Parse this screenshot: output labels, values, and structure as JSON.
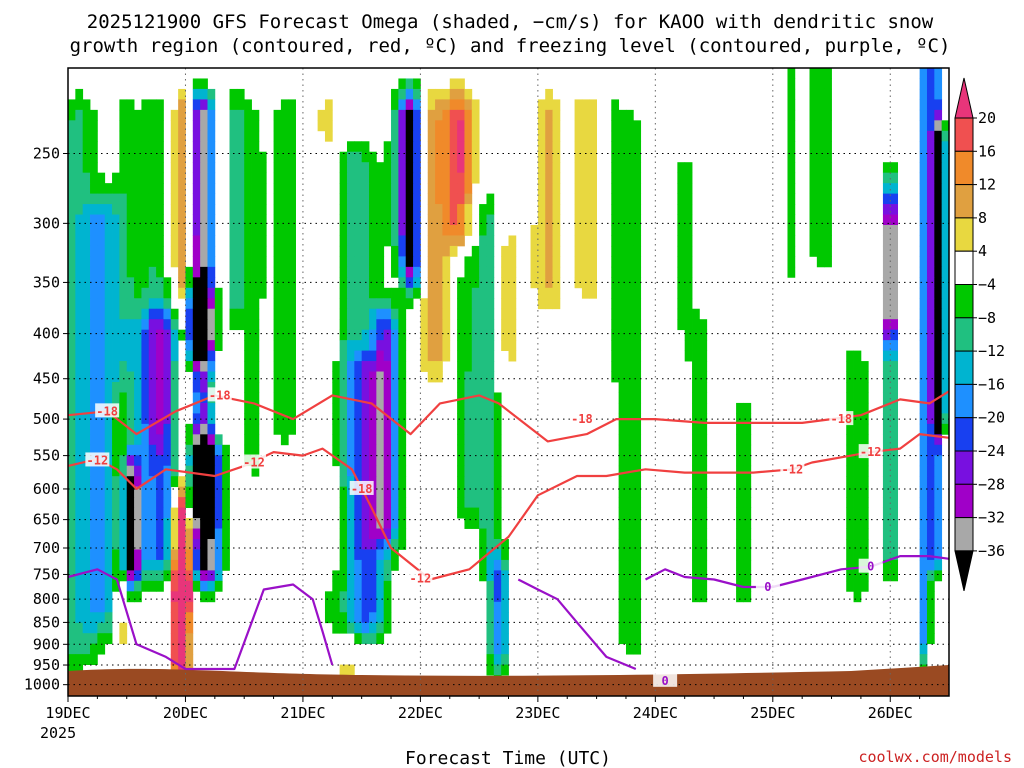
{
  "chart_data": {
    "type": "heatmap",
    "title_line1": "2025121900 GFS Forecast Omega (shaded, −cm/s) for KAOO with dendritic snow",
    "title_line2": "growth region (contoured, red, ºC) and freezing level (contoured, purple, ºC)",
    "xlabel": "Forecast Time (UTC)",
    "ylabel": "",
    "x_ticks": [
      "19DEC",
      "20DEC",
      "21DEC",
      "22DEC",
      "23DEC",
      "24DEC",
      "25DEC",
      "26DEC"
    ],
    "x_year": "2025",
    "x_range_hours": [
      0,
      180
    ],
    "y_ticks": [
      "250",
      "300",
      "350",
      "400",
      "450",
      "500",
      "550",
      "600",
      "650",
      "700",
      "750",
      "800",
      "850",
      "900",
      "950",
      "1000"
    ],
    "y_values": [
      250,
      300,
      350,
      400,
      450,
      500,
      550,
      600,
      650,
      700,
      750,
      800,
      850,
      900,
      950,
      1000
    ],
    "y_range_hpa": [
      200,
      1030
    ],
    "y_scale": "log-pressure",
    "colorbar": {
      "labels": [
        "20",
        "16",
        "12",
        "8",
        "4",
        "−4",
        "−8",
        "−12",
        "−16",
        "−20",
        "−24",
        "−28",
        "−32",
        "−36"
      ],
      "bins": [
        {
          "lo": 20,
          "hi": 99,
          "color": "#e8357a"
        },
        {
          "lo": 16,
          "hi": 20,
          "color": "#f05050"
        },
        {
          "lo": 12,
          "hi": 16,
          "color": "#f08a2a"
        },
        {
          "lo": 8,
          "hi": 12,
          "color": "#e0a040"
        },
        {
          "lo": 4,
          "hi": 8,
          "color": "#e8d840"
        },
        {
          "lo": -4,
          "hi": 4,
          "color": "#ffffff"
        },
        {
          "lo": -8,
          "hi": -4,
          "color": "#00c800"
        },
        {
          "lo": -12,
          "hi": -8,
          "color": "#20c080"
        },
        {
          "lo": -16,
          "hi": -12,
          "color": "#00b4d0"
        },
        {
          "lo": -20,
          "hi": -16,
          "color": "#1e90ff"
        },
        {
          "lo": -24,
          "hi": -20,
          "color": "#1840f0"
        },
        {
          "lo": -28,
          "hi": -24,
          "color": "#7810e0"
        },
        {
          "lo": -32,
          "hi": -28,
          "color": "#a000c8"
        },
        {
          "lo": -36,
          "hi": -32,
          "color": "#a8a8a8"
        },
        {
          "lo": -99,
          "hi": -36,
          "color": "#000000"
        }
      ]
    },
    "omega_features": [
      {
        "t": 2,
        "w": 4,
        "p_top": 230,
        "p_bot": 900,
        "v": -9
      },
      {
        "t": 7,
        "w": 4,
        "p_top": 300,
        "p_bot": 820,
        "v": -14
      },
      {
        "t": 12,
        "w": 3,
        "p_top": 230,
        "p_bot": 700,
        "v": -6
      },
      {
        "t": 11,
        "w": 2,
        "p_top": 500,
        "p_bot": 850,
        "v": 8
      },
      {
        "t": 13,
        "w": 1.5,
        "p_top": 600,
        "p_bot": 720,
        "v": -40
      },
      {
        "t": 18,
        "w": 3,
        "p_top": 230,
        "p_bot": 500,
        "v": -8
      },
      {
        "t": 19,
        "w": 5,
        "p_top": 400,
        "p_bot": 700,
        "v": -22
      },
      {
        "t": 24,
        "w": 2.2,
        "p_top": 230,
        "p_bot": 750,
        "v": 22
      },
      {
        "t": 23,
        "w": 2,
        "p_top": 650,
        "p_bot": 940,
        "v": 25
      },
      {
        "t": 27,
        "w": 3,
        "p_top": 230,
        "p_bot": 400,
        "v": -38
      },
      {
        "t": 27,
        "w": 3,
        "p_top": 380,
        "p_bot": 620,
        "v": -25
      },
      {
        "t": 28,
        "w": 3,
        "p_top": 560,
        "p_bot": 720,
        "v": -40
      },
      {
        "t": 31,
        "w": 2,
        "p_top": 230,
        "p_bot": 500,
        "v": 8
      },
      {
        "t": 38,
        "w": 4,
        "p_top": 230,
        "p_bot": 560,
        "v": -4.5
      },
      {
        "t": 34,
        "w": 2,
        "p_top": 230,
        "p_bot": 360,
        "v": -10
      },
      {
        "t": 45,
        "w": 3,
        "p_top": 230,
        "p_bot": 500,
        "v": -6
      },
      {
        "t": 53,
        "w": 3,
        "p_top": 230,
        "p_bot": 700,
        "v": 6
      },
      {
        "t": 57,
        "w": 3,
        "p_top": 620,
        "p_bot": 950,
        "v": 5
      },
      {
        "t": 58,
        "w": 6,
        "p_top": 260,
        "p_bot": 830,
        "v": -10
      },
      {
        "t": 61,
        "w": 4,
        "p_top": 450,
        "p_bot": 820,
        "v": -16
      },
      {
        "t": 65,
        "w": 3,
        "p_top": 400,
        "p_bot": 650,
        "v": -22
      },
      {
        "t": 68,
        "w": 2.5,
        "p_top": 230,
        "p_bot": 300,
        "v": -9
      },
      {
        "t": 70,
        "w": 2,
        "p_top": 230,
        "p_bot": 330,
        "v": -36
      },
      {
        "t": 80,
        "w": 3,
        "p_top": 230,
        "p_bot": 300,
        "v": 20
      },
      {
        "t": 75,
        "w": 3,
        "p_top": 230,
        "p_bot": 420,
        "v": 10
      },
      {
        "t": 86,
        "w": 2,
        "p_top": 300,
        "p_bot": 700,
        "v": -9
      },
      {
        "t": 82,
        "w": 3,
        "p_top": 300,
        "p_bot": 620,
        "v": -8
      },
      {
        "t": 88,
        "w": 2,
        "p_top": 760,
        "p_bot": 900,
        "v": -20
      },
      {
        "t": 90,
        "w": 3,
        "p_top": 320,
        "p_bot": 420,
        "v": 5
      },
      {
        "t": 98,
        "w": 3,
        "p_top": 230,
        "p_bot": 350,
        "v": 9
      },
      {
        "t": 106,
        "w": 3,
        "p_top": 230,
        "p_bot": 340,
        "v": 8
      },
      {
        "t": 112,
        "w": 2,
        "p_top": 230,
        "p_bot": 420,
        "v": -5
      },
      {
        "t": 115,
        "w": 3,
        "p_top": 240,
        "p_bot": 880,
        "v": -6
      },
      {
        "t": 126,
        "w": 2,
        "p_top": 260,
        "p_bot": 380,
        "v": -5
      },
      {
        "t": 129,
        "w": 3,
        "p_top": 400,
        "p_bot": 760,
        "v": -6
      },
      {
        "t": 138,
        "w": 3,
        "p_top": 500,
        "p_bot": 760,
        "v": -6
      },
      {
        "t": 148,
        "w": 2,
        "p_top": 200,
        "p_bot": 330,
        "v": -5
      },
      {
        "t": 154,
        "w": 3,
        "p_top": 200,
        "p_bot": 320,
        "v": -6
      },
      {
        "t": 161,
        "w": 3,
        "p_top": 440,
        "p_bot": 760,
        "v": -6
      },
      {
        "t": 168,
        "w": 2,
        "p_top": 280,
        "p_bot": 700,
        "v": -12
      },
      {
        "t": 168,
        "w": 1,
        "p_top": 300,
        "p_bot": 380,
        "v": -38
      },
      {
        "t": 175,
        "w": 1,
        "p_top": 200,
        "p_bot": 880,
        "v": -20
      },
      {
        "t": 177,
        "w": 1,
        "p_top": 200,
        "p_bot": 700,
        "v": -30
      },
      {
        "t": 178,
        "w": 1.2,
        "p_top": 250,
        "p_bot": 480,
        "v": -40
      }
    ],
    "dgz_neg12": {
      "label": "-12",
      "points": [
        [
          0,
          565
        ],
        [
          6,
          555
        ],
        [
          10,
          570
        ],
        [
          14,
          600
        ],
        [
          20,
          570
        ],
        [
          30,
          580
        ],
        [
          36,
          565
        ],
        [
          42,
          545
        ],
        [
          48,
          550
        ],
        [
          52,
          540
        ],
        [
          58,
          570
        ],
        [
          62,
          630
        ],
        [
          66,
          700
        ],
        [
          74,
          760
        ],
        [
          82,
          740
        ],
        [
          90,
          680
        ],
        [
          96,
          610
        ],
        [
          104,
          580
        ],
        [
          110,
          580
        ],
        [
          118,
          570
        ],
        [
          126,
          575
        ],
        [
          134,
          575
        ],
        [
          140,
          575
        ],
        [
          148,
          570
        ],
        [
          152,
          560
        ],
        [
          160,
          550
        ],
        [
          164,
          545
        ],
        [
          170,
          540
        ],
        [
          174,
          520
        ],
        [
          180,
          525
        ]
      ]
    },
    "dgz_neg18": {
      "label": "-18",
      "points": [
        [
          0,
          495
        ],
        [
          8,
          490
        ],
        [
          14,
          520
        ],
        [
          22,
          490
        ],
        [
          30,
          470
        ],
        [
          38,
          480
        ],
        [
          46,
          500
        ],
        [
          54,
          470
        ],
        [
          62,
          480
        ],
        [
          70,
          520
        ],
        [
          76,
          480
        ],
        [
          84,
          470
        ],
        [
          88,
          480
        ],
        [
          98,
          530
        ],
        [
          106,
          520
        ],
        [
          112,
          500
        ],
        [
          120,
          500
        ],
        [
          130,
          505
        ],
        [
          140,
          505
        ],
        [
          150,
          505
        ],
        [
          156,
          500
        ],
        [
          162,
          495
        ],
        [
          170,
          475
        ],
        [
          176,
          480
        ],
        [
          180,
          465
        ]
      ]
    },
    "freezing_level": {
      "label": "0",
      "points": [
        [
          0,
          755
        ],
        [
          6,
          740
        ],
        [
          10,
          760
        ],
        [
          14,
          900
        ],
        [
          20,
          930
        ],
        [
          24,
          960
        ],
        [
          34,
          960
        ],
        [
          40,
          780
        ],
        [
          46,
          770
        ],
        [
          50,
          800
        ],
        [
          52,
          870
        ],
        [
          54,
          950
        ]
      ],
      "segment2": [
        [
          92,
          760
        ],
        [
          96,
          780
        ],
        [
          100,
          800
        ],
        [
          104,
          850
        ],
        [
          110,
          930
        ],
        [
          116,
          960
        ]
      ],
      "segment3": [
        [
          118,
          760
        ],
        [
          122,
          740
        ],
        [
          126,
          755
        ],
        [
          132,
          760
        ],
        [
          138,
          775
        ],
        [
          144,
          775
        ],
        [
          150,
          760
        ],
        [
          158,
          740
        ],
        [
          164,
          735
        ],
        [
          170,
          715
        ],
        [
          176,
          715
        ],
        [
          180,
          720
        ]
      ]
    },
    "terrain_surface_hpa": 955
  },
  "credit": "coolwx.com/models"
}
